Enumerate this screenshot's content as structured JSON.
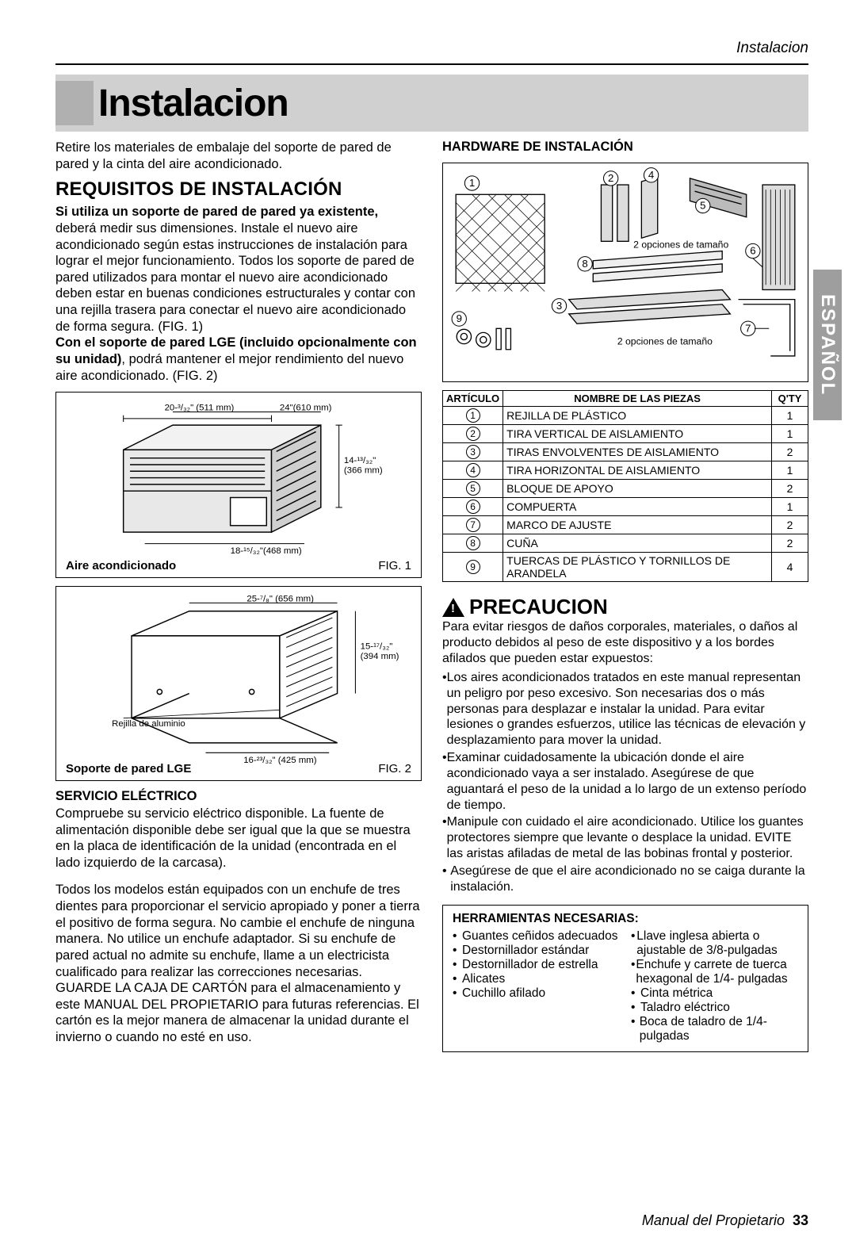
{
  "header": {
    "section": "Instalacion"
  },
  "title": "Instalacion",
  "side_tab": "ESPAÑOL",
  "left": {
    "intro": "Retire los materiales de embalaje del soporte de pared de pared y la cinta del aire acondicionado.",
    "h2": "REQUISITOS DE INSTALACIÓN",
    "p1_bold": "Si utiliza un soporte de pared de pared ya existente,",
    "p1": " deberá medir sus dimensiones. Instale el nuevo aire acondicionado según estas instrucciones de instalación para lograr el mejor funcionamiento. Todos los soporte de pared de pared utilizados para montar el nuevo aire acondicionado deben estar en buenas condiciones estructurales y contar con una rejilla trasera para conectar el nuevo aire acondicionado de forma segura. (FIG. 1)",
    "p2_bold": "Con el soporte de pared LGE (incluido opcionalmente con su unidad)",
    "p2": ", podrá mantener el mejor rendimiento del nuevo aire acondicionado. (FIG. 2)",
    "fig1": {
      "w_label": "20-3/32\"\n(511 mm)",
      "d_label": "24\"(610 mm)",
      "h_label": "14-13/32\"\n(366 mm)",
      "diag_label": "18-15/32\"(468 mm)",
      "caption_left": "Aire acondicionado",
      "caption_right": "FIG. 1"
    },
    "fig2": {
      "w_label": "25-7/8\"\n(656 mm)",
      "h_label": "15-17/32\"\n(394 mm)",
      "d_label": "16-23/32\"\n(425 mm)",
      "grille": "Rejilla de aluminio",
      "caption_left": "Soporte de pared LGE",
      "caption_right": "FIG. 2"
    },
    "h3_elec": "SERVICIO ELÉCTRICO",
    "elec_p1": "Compruebe su servicio eléctrico disponible. La fuente de alimentación disponible debe ser igual que la que se muestra en la placa de identificación de la unidad (encontrada en el lado izquierdo de la carcasa).",
    "elec_p2": "Todos los modelos están equipados con un enchufe de tres dientes para proporcionar el servicio apropiado y poner a tierra el positivo de forma segura. No cambie el enchufe de ninguna manera. No utilice un enchufe adaptador. Si su enchufe de pared actual no admite su enchufe, llame a un electricista cualificado para realizar las correcciones necesarias. GUARDE LA CAJA DE CARTÓN para el almacenamiento y este MANUAL DEL PROPIETARIO para futuras referencias. El cartón es la mejor manera de almacenar la unidad durante el invierno o cuando no esté en uso."
  },
  "right": {
    "h3_hw": "HARDWARE DE INSTALACIÓN",
    "diag_note": "2 opciones de tamaño",
    "table": {
      "headers": {
        "item": "ARTÍCULO",
        "name": "NOMBRE DE LAS PIEZAS",
        "qty": "Q'TY"
      },
      "rows": [
        {
          "n": "1",
          "name": "REJILLA DE PLÁSTICO",
          "qty": "1"
        },
        {
          "n": "2",
          "name": "TIRA VERTICAL DE AISLAMIENTO",
          "qty": "1"
        },
        {
          "n": "3",
          "name": "TIRAS ENVOLVENTES DE AISLAMIENTO",
          "qty": "2"
        },
        {
          "n": "4",
          "name": "TIRA HORIZONTAL DE AISLAMIENTO",
          "qty": "1"
        },
        {
          "n": "5",
          "name": "BLOQUE DE APOYO",
          "qty": "2"
        },
        {
          "n": "6",
          "name": "COMPUERTA",
          "qty": "1"
        },
        {
          "n": "7",
          "name": "MARCO DE AJUSTE",
          "qty": "2"
        },
        {
          "n": "8",
          "name": "CUÑA",
          "qty": "2"
        },
        {
          "n": "9",
          "name": "TUERCAS DE PLÁSTICO Y TORNILLOS DE ARANDELA",
          "qty": "4"
        }
      ]
    },
    "warn_title": "PRECAUCION",
    "warn_intro": "Para evitar riesgos de daños corporales, materiales, o daños al producto debidos al peso de este dispositivo y a los bordes afilados que pueden estar expuestos:",
    "warn_items": [
      "Los aires acondicionados tratados en este manual representan un peligro por peso excesivo. Son necesarias dos o más personas para desplazar e instalar la unidad. Para evitar lesiones o grandes esfuerzos, utilice las técnicas de elevación y desplazamiento para mover la unidad.",
      "Examinar cuidadosamente la ubicación donde el aire acondicionado vaya a ser instalado. Asegúrese de que aguantará el peso de la unidad a lo largo de un extenso período de tiempo.",
      "Manipule con cuidado el aire acondicionado. Utilice los guantes protectores siempre que levante o desplace la unidad. EVITE las aristas afiladas de metal de las bobinas frontal y posterior.",
      "Asegúrese de que el aire acondicionado no se caiga durante la instalación."
    ],
    "tools": {
      "title": "HERRAMIENTAS NECESARIAS:",
      "left": [
        "Guantes ceñidos adecuados",
        "Destornillador estándar",
        "Destornillador de estrella",
        "Alicates",
        "Cuchillo afilado"
      ],
      "right": [
        "Llave inglesa abierta o ajustable de 3/8-pulgadas",
        "Enchufe y carrete de tuerca hexagonal de 1/4- pulgadas",
        "Cinta métrica",
        "Taladro eléctrico",
        "Boca de taladro de 1/4-pulgadas"
      ]
    }
  },
  "footer": {
    "text": "Manual del Propietario",
    "page": "33"
  }
}
